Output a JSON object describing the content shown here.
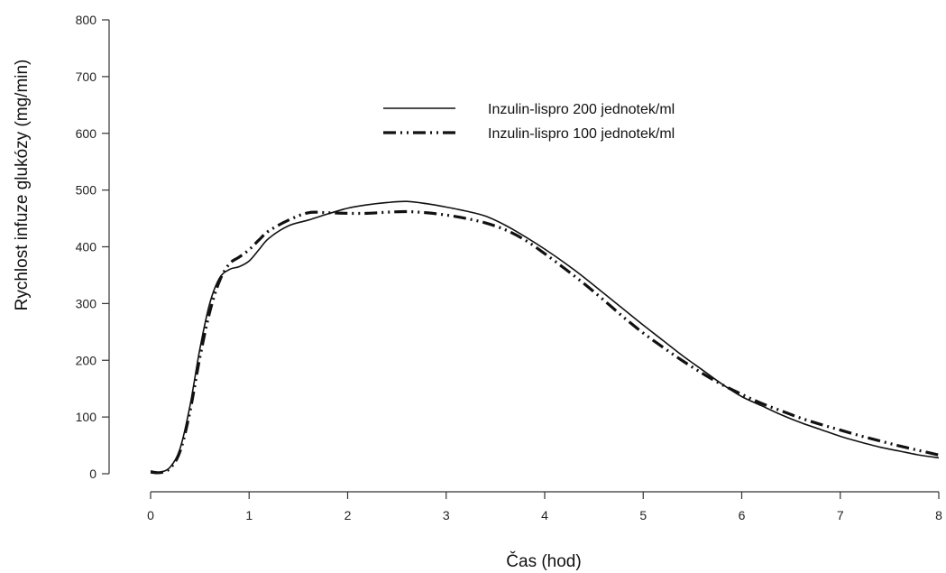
{
  "chart_data": {
    "type": "line",
    "title": "",
    "xlabel": "Čas (hod)",
    "ylabel": "Rychlost infuze glukózy (mg/min)",
    "xlim": [
      0,
      8
    ],
    "ylim": [
      0,
      800
    ],
    "xticks": [
      "0",
      "1",
      "2",
      "3",
      "4",
      "5",
      "6",
      "7",
      "8"
    ],
    "yticks": [
      "0",
      "100",
      "200",
      "300",
      "400",
      "500",
      "600",
      "700",
      "800"
    ],
    "grid": false,
    "legend_position": "top-center",
    "series": [
      {
        "name": "Inzulin-lispro 200 jednotek/ml",
        "style": "solid",
        "color": "#111111",
        "x": [
          0,
          0.1,
          0.2,
          0.3,
          0.4,
          0.5,
          0.6,
          0.7,
          0.8,
          0.9,
          1.0,
          1.1,
          1.2,
          1.4,
          1.6,
          1.8,
          2.0,
          2.2,
          2.4,
          2.6,
          2.8,
          3.0,
          3.2,
          3.4,
          3.6,
          3.8,
          4.0,
          4.2,
          4.4,
          4.6,
          4.8,
          5.0,
          5.2,
          5.4,
          5.6,
          5.8,
          6.0,
          6.2,
          6.4,
          6.6,
          6.8,
          7.0,
          7.2,
          7.4,
          7.6,
          7.8,
          8.0
        ],
        "y": [
          5,
          3,
          12,
          45,
          120,
          220,
          300,
          345,
          360,
          365,
          375,
          395,
          415,
          437,
          447,
          458,
          468,
          474,
          478,
          480,
          476,
          470,
          463,
          454,
          438,
          418,
          396,
          372,
          346,
          318,
          290,
          262,
          235,
          208,
          183,
          158,
          136,
          120,
          104,
          90,
          78,
          66,
          56,
          47,
          40,
          33,
          28
        ]
      },
      {
        "name": "Inzulin-lispro 100 jednotek/ml",
        "style": "dash-dot-dot",
        "color": "#111111",
        "x": [
          0,
          0.1,
          0.2,
          0.3,
          0.4,
          0.5,
          0.6,
          0.7,
          0.8,
          0.9,
          1.0,
          1.1,
          1.2,
          1.4,
          1.6,
          1.8,
          2.0,
          2.2,
          2.4,
          2.6,
          2.8,
          3.0,
          3.2,
          3.4,
          3.6,
          3.8,
          4.0,
          4.2,
          4.4,
          4.6,
          4.8,
          5.0,
          5.2,
          5.4,
          5.6,
          5.8,
          6.0,
          6.2,
          6.4,
          6.6,
          6.8,
          7.0,
          7.2,
          7.4,
          7.6,
          7.8,
          8.0
        ],
        "y": [
          3,
          2,
          10,
          40,
          110,
          205,
          285,
          340,
          370,
          382,
          395,
          412,
          428,
          447,
          460,
          460,
          459,
          459,
          461,
          462,
          460,
          456,
          450,
          442,
          430,
          412,
          388,
          362,
          335,
          306,
          276,
          248,
          223,
          199,
          177,
          157,
          140,
          124,
          111,
          98,
          87,
          77,
          67,
          58,
          49,
          41,
          33
        ]
      }
    ]
  }
}
